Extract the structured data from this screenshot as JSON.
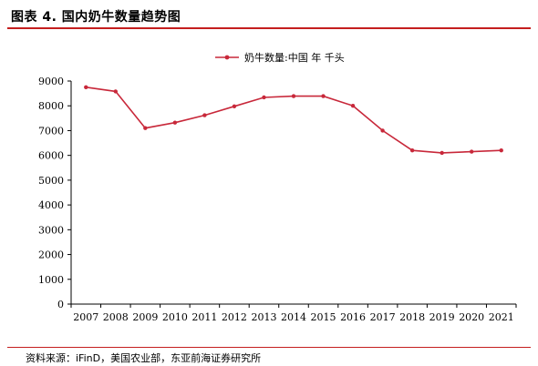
{
  "figure": {
    "title": "图表 4.   国内奶牛数量趋势图",
    "source": "资料来源：iFinD，美国农业部，东亚前海证券研究所"
  },
  "colors": {
    "accent": "#c41e1e",
    "series": "#c8283a",
    "axis": "#000000"
  },
  "chart_data": {
    "type": "line",
    "title": "",
    "xlabel": "",
    "ylabel": "",
    "ylim": [
      0,
      9000
    ],
    "yticks": [
      0,
      1000,
      2000,
      3000,
      4000,
      5000,
      6000,
      7000,
      8000,
      9000
    ],
    "grid": false,
    "legend_position": "top-center",
    "categories": [
      "2007",
      "2008",
      "2009",
      "2010",
      "2011",
      "2012",
      "2013",
      "2014",
      "2015",
      "2016",
      "2017",
      "2018",
      "2019",
      "2020",
      "2021"
    ],
    "series": [
      {
        "name": "奶牛数量:中国 年 千头",
        "values": [
          8750,
          8580,
          7100,
          7320,
          7620,
          7980,
          8340,
          8390,
          8390,
          8000,
          7000,
          6200,
          6100,
          6150,
          6200
        ]
      }
    ]
  }
}
